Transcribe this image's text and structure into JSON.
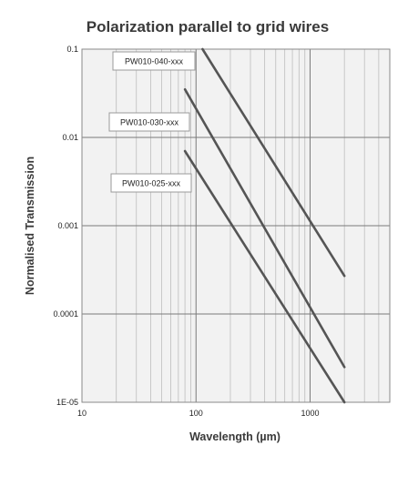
{
  "chart_data": {
    "type": "line",
    "title": "Polarization parallel to grid wires",
    "xlabel": "Wavelength (µm)",
    "ylabel": "Normalised Transmission",
    "x_scale": "log",
    "y_scale": "log",
    "xlim": [
      10,
      5000
    ],
    "ylim": [
      1e-05,
      0.1
    ],
    "x_ticks": [
      10,
      100,
      1000
    ],
    "x_tick_labels": [
      "10",
      "100",
      "1000"
    ],
    "y_ticks": [
      1e-05,
      0.0001,
      0.001,
      0.01,
      0.1
    ],
    "y_tick_labels": [
      "1E-05",
      "0.0001",
      "0.001",
      "0.01",
      "0.1"
    ],
    "grid": true,
    "series": [
      {
        "name": "PW010-040-xxx",
        "x": [
          114,
          2000
        ],
        "y": [
          0.1,
          0.00027
        ],
        "color": "#555555"
      },
      {
        "name": "PW010-030-xxx",
        "x": [
          80,
          2000
        ],
        "y": [
          0.035,
          2.5e-05
        ],
        "color": "#555555"
      },
      {
        "name": "PW010-025-xxx",
        "x": [
          80,
          2000
        ],
        "y": [
          0.007,
          1e-05
        ],
        "color": "#555555"
      }
    ]
  }
}
